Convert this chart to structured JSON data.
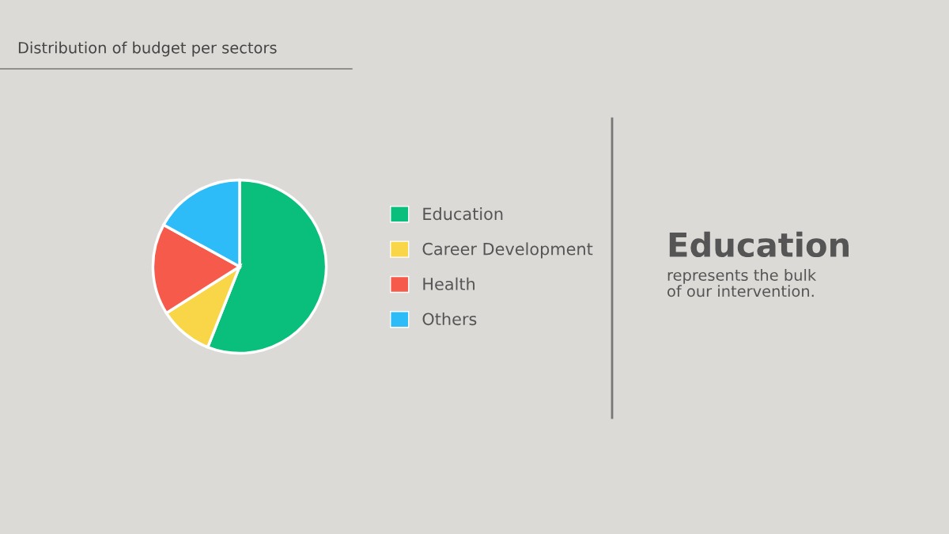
{
  "chart_data": {
    "type": "pie",
    "title": "Distribution of budget per sectors",
    "categories": [
      "Education",
      "Career Development",
      "Health",
      "Others"
    ],
    "values": [
      56,
      10,
      17,
      17
    ],
    "colors": [
      "#0abf7c",
      "#f9d548",
      "#f65a4b",
      "#2dbcf7"
    ],
    "legend": "right",
    "annotations": [
      "Education",
      "represents the bulk\nof our intervention."
    ]
  }
}
